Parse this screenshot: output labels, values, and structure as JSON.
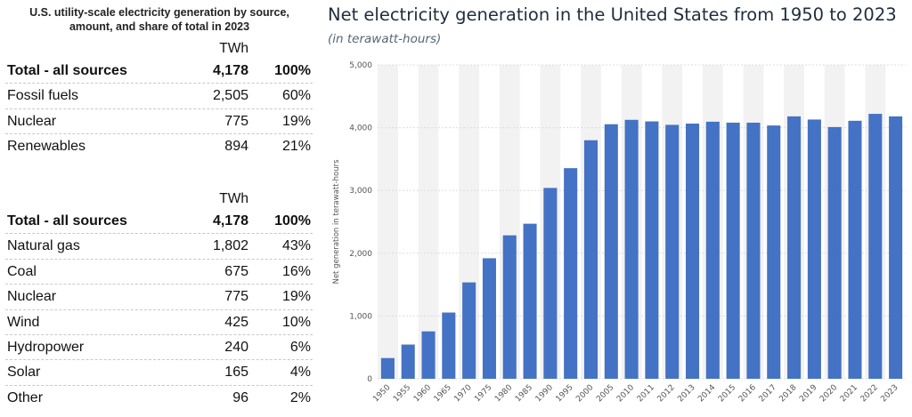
{
  "table_panel": {
    "title_line1": "U.S. utility-scale electricity generation by source,",
    "title_line2": "amount, and share of total in 2023",
    "summary": {
      "unit_header": "TWh",
      "rows": [
        {
          "name": "Total - all sources",
          "value": "4,178",
          "share": "100%",
          "bold": true
        },
        {
          "name": "Fossil fuels",
          "value": "2,505",
          "share": "60%"
        },
        {
          "name": "Nuclear",
          "value": "775",
          "share": "19%"
        },
        {
          "name": "Renewables",
          "value": "894",
          "share": "21%"
        }
      ]
    },
    "detail": {
      "unit_header": "TWh",
      "rows": [
        {
          "name": "Total - all sources",
          "value": "4,178",
          "share": "100%",
          "bold": true
        },
        {
          "name": "Natural gas",
          "value": "1,802",
          "share": "43%"
        },
        {
          "name": "Coal",
          "value": "675",
          "share": "16%"
        },
        {
          "name": "Nuclear",
          "value": "775",
          "share": "19%"
        },
        {
          "name": "Wind",
          "value": "425",
          "share": "10%"
        },
        {
          "name": "Hydropower",
          "value": "240",
          "share": "6%"
        },
        {
          "name": "Solar",
          "value": "165",
          "share": "4%"
        },
        {
          "name": "Other",
          "value": "96",
          "share": "2%"
        }
      ]
    }
  },
  "chart_data": {
    "type": "bar",
    "title": "Net electricity generation in the United States from 1950 to 2023",
    "subtitle": "(in terawatt-hours)",
    "xlabel": "",
    "ylabel": "Net generation in terawatt-hours",
    "ylim": [
      0,
      5000
    ],
    "yticks": [
      0,
      1000,
      2000,
      3000,
      4000,
      5000
    ],
    "ytick_labels": [
      "0",
      "1,000",
      "2,000",
      "3,000",
      "4,000",
      "5,000"
    ],
    "grid": true,
    "bar_color": "#4472c4",
    "categories": [
      "1950",
      "1955",
      "1960",
      "1965",
      "1970",
      "1975",
      "1980",
      "1985",
      "1990",
      "1995",
      "2000",
      "2005",
      "2010",
      "2011",
      "2012",
      "2013",
      "2014",
      "2015",
      "2016",
      "2017",
      "2018",
      "2019",
      "2020",
      "2021",
      "2022",
      "2023"
    ],
    "values": [
      330,
      545,
      755,
      1055,
      1535,
      1920,
      2285,
      2470,
      3040,
      3355,
      3800,
      4055,
      4125,
      4100,
      4045,
      4065,
      4095,
      4080,
      4080,
      4035,
      4180,
      4130,
      4010,
      4110,
      4220,
      4180
    ]
  }
}
